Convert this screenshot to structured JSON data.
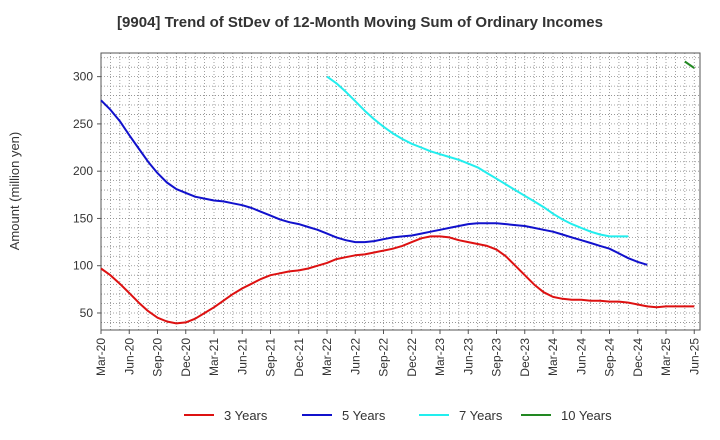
{
  "chart_data": {
    "type": "line",
    "title": "[9904]  Trend of StDev of 12-Month Moving Sum of Ordinary Incomes",
    "ylabel": "Amount (million yen)",
    "xlabel": "",
    "ylim": [
      32,
      325
    ],
    "yticks": [
      50,
      100,
      150,
      200,
      250,
      300
    ],
    "xticks": [
      "Mar-20",
      "Jun-20",
      "Sep-20",
      "Dec-20",
      "Mar-21",
      "Jun-21",
      "Sep-21",
      "Dec-21",
      "Mar-22",
      "Jun-22",
      "Sep-22",
      "Dec-22",
      "Mar-23",
      "Jun-23",
      "Sep-23",
      "Dec-23",
      "Mar-24",
      "Jun-24",
      "Sep-24",
      "Dec-24",
      "Mar-25",
      "Jun-25"
    ],
    "grid": true,
    "legend_position": "bottom",
    "series": [
      {
        "name": "3 Years",
        "color": "#dd1111",
        "values": [
          97,
          90,
          81,
          71,
          61,
          52,
          45,
          41,
          39,
          40,
          44,
          50,
          56,
          63,
          70,
          76,
          81,
          86,
          90,
          92,
          94,
          95,
          97,
          100,
          103,
          107,
          109,
          111,
          112,
          114,
          116,
          118,
          121,
          125,
          129,
          131,
          131,
          130,
          127,
          125,
          123,
          121,
          117,
          110,
          100,
          90,
          80,
          72,
          67,
          65,
          64,
          64,
          63,
          63,
          62,
          62,
          61,
          59,
          57,
          56,
          57,
          57,
          57,
          57
        ]
      },
      {
        "name": "5 Years",
        "color": "#1111cc",
        "values": [
          275,
          265,
          253,
          238,
          224,
          210,
          198,
          188,
          181,
          177,
          173,
          171,
          169,
          168,
          166,
          164,
          161,
          157,
          153,
          149,
          146,
          144,
          141,
          138,
          134,
          130,
          127,
          125,
          125,
          126,
          128,
          130,
          131,
          132,
          134,
          136,
          138,
          140,
          142,
          144,
          145,
          145,
          145,
          144,
          143,
          142,
          140,
          138,
          136,
          133,
          130,
          127,
          124,
          121,
          118,
          113,
          108,
          104,
          101
        ]
      },
      {
        "name": "7 Years",
        "color": "#22eeee",
        "offset": 24,
        "values": [
          300,
          293,
          284,
          274,
          264,
          255,
          247,
          240,
          234,
          229,
          225,
          221,
          218,
          215,
          212,
          208,
          204,
          198,
          192,
          186,
          180,
          174,
          168,
          162,
          155,
          149,
          144,
          140,
          136,
          133,
          131,
          131,
          131
        ]
      },
      {
        "name": "10 Years",
        "color": "#228822",
        "offset": 62,
        "values": [
          316,
          309
        ]
      }
    ]
  }
}
